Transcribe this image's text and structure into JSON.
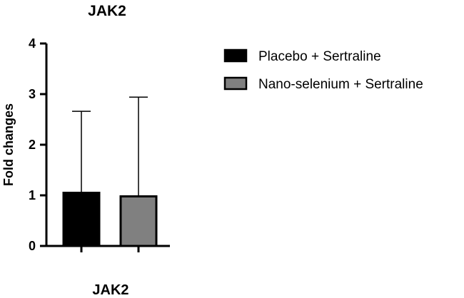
{
  "chart_data": {
    "type": "bar",
    "title": "JAK2",
    "ylabel": "Fold changes",
    "xlabel": "JAK2",
    "ylim": [
      0,
      4
    ],
    "yticks": [
      0,
      1,
      2,
      3,
      4
    ],
    "series": [
      {
        "name": "Placebo + Sertraline",
        "value": 1.05,
        "error_upper": 2.66,
        "color": "#000000"
      },
      {
        "name": "Nano-selenium + Sertraline",
        "value": 0.98,
        "error_upper": 2.94,
        "color": "#808080"
      }
    ],
    "legend_position": "top-right"
  }
}
